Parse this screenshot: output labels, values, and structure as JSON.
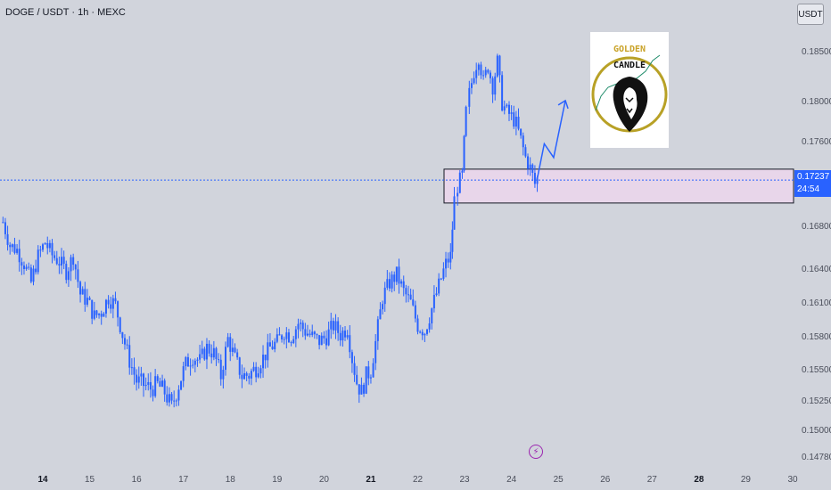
{
  "header": {
    "symbol": "DOGE / USDT · 1h · MEXC",
    "currency": "USDT"
  },
  "current_price": {
    "value": "0.17237",
    "countdown": "24:54"
  },
  "logo": {
    "line1": "GOLDEN",
    "line2": "CANDLE"
  },
  "colors": {
    "background": "#d1d4dc",
    "candle": "#2962ff",
    "zone_fill": "#e8d6ea",
    "price_line": "#2962ff",
    "alert": "#9c27b0",
    "gold": "#b8a126"
  },
  "icons": {
    "alert": "lightning-alert-icon",
    "logo": "lion-logo-icon"
  },
  "chart_data": {
    "type": "candlestick",
    "title": "DOGE / USDT · 1h · MEXC",
    "x_ticks": [
      "14",
      "15",
      "16",
      "17",
      "18",
      "19",
      "20",
      "21",
      "22",
      "23",
      "24",
      "25",
      "26",
      "27",
      "28",
      "29",
      "30"
    ],
    "bold_ticks": [
      "14",
      "21",
      "28"
    ],
    "y_ticks": [
      0.185,
      0.18,
      0.176,
      0.1724,
      0.168,
      0.164,
      0.161,
      0.158,
      0.155,
      0.1525,
      0.15,
      0.1478
    ],
    "y_tick_labels": [
      "0.18500",
      "0.18000",
      "0.17600",
      "0.17237",
      "0.16800",
      "0.16400",
      "0.16100",
      "0.15800",
      "0.15500",
      "0.15250",
      "0.15000",
      "0.14780"
    ],
    "ylim": [
      0.1475,
      0.1875
    ],
    "current_price": 0.17237,
    "zone": {
      "top": 0.1734,
      "bottom": 0.1702
    },
    "projection_path": [
      [
        24.55,
        0.1725
      ],
      [
        24.7,
        0.1758
      ],
      [
        24.9,
        0.1745
      ],
      [
        25.15,
        0.1801
      ]
    ],
    "close_path": [
      [
        13.15,
        0.1684
      ],
      [
        13.3,
        0.1662
      ],
      [
        13.45,
        0.1658
      ],
      [
        13.6,
        0.1645
      ],
      [
        13.75,
        0.1628
      ],
      [
        13.9,
        0.1652
      ],
      [
        14.05,
        0.1665
      ],
      [
        14.2,
        0.1653
      ],
      [
        14.35,
        0.1647
      ],
      [
        14.5,
        0.1638
      ],
      [
        14.65,
        0.1652
      ],
      [
        14.8,
        0.1618
      ],
      [
        14.95,
        0.1612
      ],
      [
        15.1,
        0.1598
      ],
      [
        15.25,
        0.1602
      ],
      [
        15.4,
        0.1615
      ],
      [
        15.55,
        0.1608
      ],
      [
        15.7,
        0.1582
      ],
      [
        15.85,
        0.1558
      ],
      [
        16.0,
        0.1541
      ],
      [
        16.15,
        0.1538
      ],
      [
        16.3,
        0.1535
      ],
      [
        16.45,
        0.1538
      ],
      [
        16.6,
        0.1532
      ],
      [
        16.75,
        0.152
      ],
      [
        16.9,
        0.1538
      ],
      [
        17.05,
        0.1555
      ],
      [
        17.2,
        0.1562
      ],
      [
        17.35,
        0.1558
      ],
      [
        17.5,
        0.157
      ],
      [
        17.65,
        0.1565
      ],
      [
        17.8,
        0.1545
      ],
      [
        17.95,
        0.1578
      ],
      [
        18.1,
        0.156
      ],
      [
        18.25,
        0.1545
      ],
      [
        18.4,
        0.1546
      ],
      [
        18.55,
        0.1552
      ],
      [
        18.7,
        0.1561
      ],
      [
        18.85,
        0.157
      ],
      [
        19.0,
        0.1575
      ],
      [
        19.15,
        0.1585
      ],
      [
        19.3,
        0.158
      ],
      [
        19.45,
        0.1592
      ],
      [
        19.6,
        0.1585
      ],
      [
        19.75,
        0.158
      ],
      [
        19.9,
        0.1576
      ],
      [
        20.05,
        0.158
      ],
      [
        20.2,
        0.159
      ],
      [
        20.35,
        0.1582
      ],
      [
        20.5,
        0.1588
      ],
      [
        20.6,
        0.156
      ],
      [
        20.7,
        0.154
      ],
      [
        20.8,
        0.1532
      ],
      [
        20.9,
        0.1545
      ],
      [
        21.0,
        0.155
      ],
      [
        21.1,
        0.1575
      ],
      [
        21.25,
        0.1615
      ],
      [
        21.4,
        0.1628
      ],
      [
        21.55,
        0.1635
      ],
      [
        21.7,
        0.162
      ],
      [
        21.85,
        0.161
      ],
      [
        22.0,
        0.159
      ],
      [
        22.15,
        0.1585
      ],
      [
        22.3,
        0.1605
      ],
      [
        22.45,
        0.1625
      ],
      [
        22.6,
        0.1645
      ],
      [
        22.7,
        0.1652
      ],
      [
        22.78,
        0.1705
      ],
      [
        22.85,
        0.1718
      ],
      [
        22.95,
        0.1728
      ],
      [
        23.03,
        0.179
      ],
      [
        23.1,
        0.1808
      ],
      [
        23.2,
        0.183
      ],
      [
        23.3,
        0.1845
      ],
      [
        23.4,
        0.182
      ],
      [
        23.5,
        0.1835
      ],
      [
        23.6,
        0.1815
      ],
      [
        23.7,
        0.184
      ],
      [
        23.8,
        0.1798
      ],
      [
        23.9,
        0.179
      ],
      [
        24.0,
        0.1785
      ],
      [
        24.1,
        0.1778
      ],
      [
        24.2,
        0.1762
      ],
      [
        24.3,
        0.1745
      ],
      [
        24.4,
        0.1735
      ],
      [
        24.5,
        0.172
      ],
      [
        24.55,
        0.1725
      ]
    ]
  }
}
